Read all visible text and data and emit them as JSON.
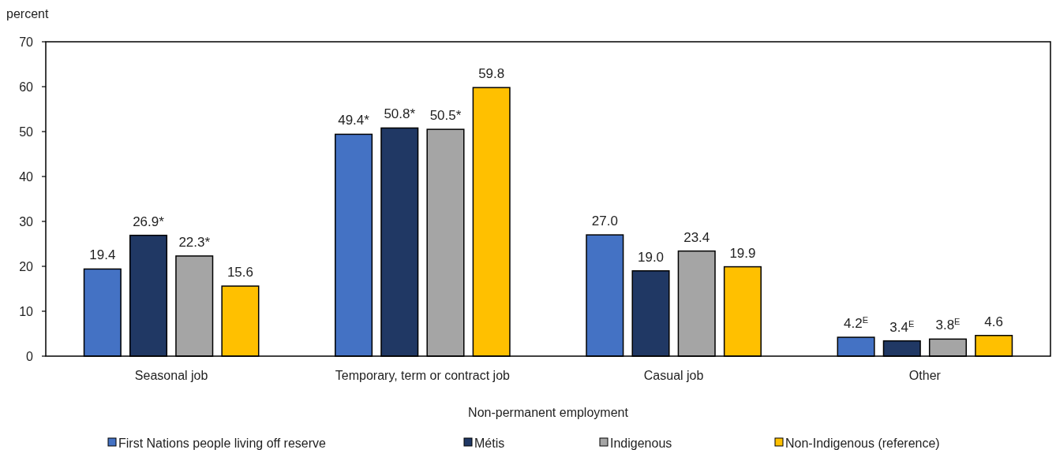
{
  "chart_data": {
    "type": "bar",
    "ylabel": "percent",
    "xlabel": "Non-permanent employment",
    "categories": [
      "Seasonal job",
      "Temporary, term or contract job",
      "Casual job",
      "Other"
    ],
    "series": [
      {
        "name": "First Nations people living off reserve",
        "color": "#4472c4",
        "values": [
          19.4,
          49.4,
          27.0,
          4.2
        ],
        "value_labels": [
          "19.4",
          "49.4*",
          "27.0",
          "4.2$^{E}$"
        ]
      },
      {
        "name": "Métis",
        "color": "#203864",
        "values": [
          26.9,
          50.8,
          19.0,
          3.4
        ],
        "value_labels": [
          "26.9*",
          "50.8*",
          "19.0",
          "3.4$^{E}$"
        ]
      },
      {
        "name": "Indigenous",
        "color": "#a5a5a5",
        "values": [
          22.3,
          50.5,
          23.4,
          3.8
        ],
        "value_labels": [
          "22.3*",
          "50.5*",
          "23.4",
          "3.8$^{E}$"
        ]
      },
      {
        "name": "Non-Indigenous (reference)",
        "color": "#ffc000",
        "values": [
          15.6,
          59.8,
          19.9,
          4.6
        ],
        "value_labels": [
          "15.6",
          "59.8",
          "19.9",
          "4.6"
        ]
      }
    ],
    "ylim": [
      0,
      70
    ],
    "yticks": [
      0,
      10,
      20,
      30,
      40,
      50,
      60,
      70
    ],
    "legend": "bottom"
  }
}
